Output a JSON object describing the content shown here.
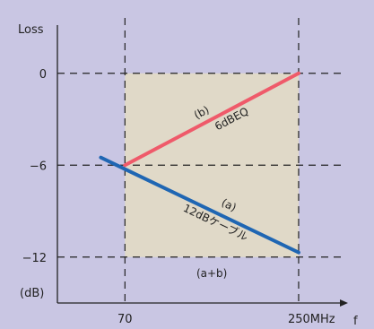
{
  "chart_data": {
    "type": "line",
    "ylabel": "Loss",
    "xlabel": "f",
    "y_unit": "(dB)",
    "xlim": [
      0,
      290
    ],
    "ylim": [
      -15,
      3.5
    ],
    "y_ticks": [
      {
        "value": 0,
        "label": "0"
      },
      {
        "value": -6,
        "label": "−6"
      },
      {
        "value": -12,
        "label": "−12"
      }
    ],
    "x_ticks": [
      {
        "value": 70,
        "label": "70"
      },
      {
        "value": 250,
        "label": "250MHz"
      }
    ],
    "band": {
      "x": [
        70,
        250
      ],
      "y": [
        -12,
        0
      ]
    },
    "series": [
      {
        "name": "6dBEQ",
        "id": "(b)",
        "color": "#ef5a6a",
        "x": [
          70,
          250
        ],
        "y": [
          -6,
          0
        ]
      },
      {
        "name": "12dBケーブル",
        "id": "(a)",
        "color": "#1f66b3",
        "x": [
          45,
          250
        ],
        "y": [
          -5.5,
          -11.7
        ]
      }
    ],
    "annotations": {
      "sum": "(a+b)"
    },
    "colors": {
      "background": "#c9c6e3",
      "band": "#e0d9c8"
    }
  }
}
